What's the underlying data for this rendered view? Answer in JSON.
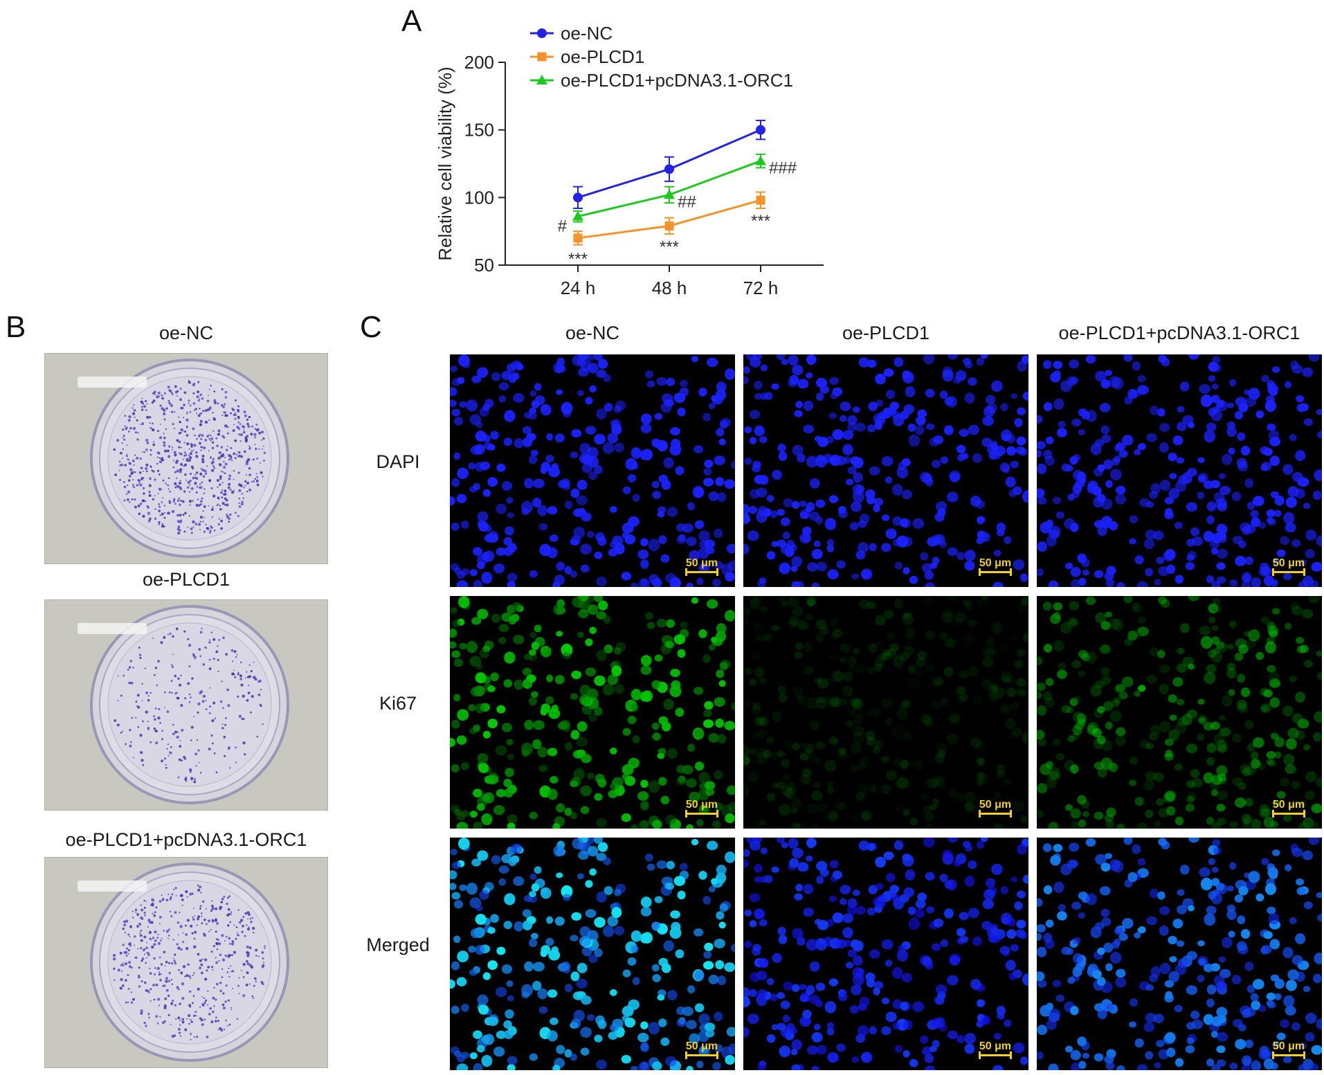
{
  "panels": {
    "a": "A",
    "b": "B",
    "c": "C"
  },
  "chart_data": {
    "type": "line",
    "ylabel": "Relative cell viability (%)",
    "categories": [
      "24 h",
      "48 h",
      "72 h"
    ],
    "ylim": [
      50,
      200
    ],
    "yticks": [
      "50",
      "100",
      "150",
      "200"
    ],
    "legend_position": "top-left",
    "series": [
      {
        "name": "oe-NC",
        "color": "#2323e6",
        "marker": "circle",
        "values": [
          100,
          121,
          150
        ],
        "errors": [
          8,
          9,
          7
        ]
      },
      {
        "name": "oe-PLCD1",
        "color": "#f5922a",
        "marker": "square",
        "values": [
          70,
          79,
          98
        ],
        "errors": [
          5,
          6,
          6
        ]
      },
      {
        "name": "oe-PLCD1+pcDNA3.1-ORC1",
        "color": "#1ec81e",
        "marker": "triangle",
        "values": [
          86,
          102,
          127
        ],
        "errors": [
          4,
          6,
          5
        ]
      }
    ],
    "annotations": [
      {
        "text": "#",
        "category": "24 h",
        "series": "oe-PLCD1+pcDNA3.1-ORC1",
        "position": "left"
      },
      {
        "text": "##",
        "category": "48 h",
        "series": "oe-PLCD1+pcDNA3.1-ORC1",
        "position": "right"
      },
      {
        "text": "###",
        "category": "72 h",
        "series": "oe-PLCD1+pcDNA3.1-ORC1",
        "position": "right"
      },
      {
        "text": "***",
        "category": "24 h",
        "series": "oe-PLCD1",
        "position": "below"
      },
      {
        "text": "***",
        "category": "48 h",
        "series": "oe-PLCD1",
        "position": "below"
      },
      {
        "text": "***",
        "category": "72 h",
        "series": "oe-PLCD1",
        "position": "below"
      }
    ]
  },
  "colony": {
    "labels": [
      "oe-NC",
      "oe-PLCD1",
      "oe-PLCD1+pcDNA3.1-ORC1"
    ],
    "colony_density": [
      1.0,
      0.35,
      0.7
    ]
  },
  "immuno": {
    "columns": [
      "oe-NC",
      "oe-PLCD1",
      "oe-PLCD1+pcDNA3.1-ORC1"
    ],
    "rows": [
      "DAPI",
      "Ki67",
      "Merged"
    ],
    "scale_label": "50 μm",
    "ki67_intensity": [
      1.0,
      0.25,
      0.6
    ]
  }
}
